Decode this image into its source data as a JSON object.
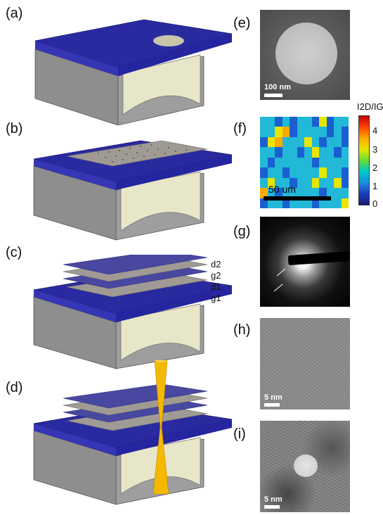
{
  "panels": {
    "a": {
      "label": "(a)"
    },
    "b": {
      "label": "(b)"
    },
    "c": {
      "label": "(c)",
      "layers": [
        "d2",
        "g2",
        "d1",
        "g1"
      ]
    },
    "d": {
      "label": "(d)"
    },
    "e": {
      "label": "(e)",
      "scale": "100 nm"
    },
    "f": {
      "label": "(f)",
      "scale": "50 um",
      "colorbar_title": "I2D/IG",
      "colorbar_ticks": [
        "4",
        "3",
        "2",
        "1",
        "0"
      ]
    },
    "g": {
      "label": "(g)"
    },
    "h": {
      "label": "(h)",
      "scale": "5 nm"
    },
    "i": {
      "label": "(i)",
      "scale": "5 nm"
    }
  },
  "colors": {
    "substrate_top": "#2a2aa0",
    "substrate_side": "#8e8e8e",
    "cavity": "#e8e6c8",
    "membrane": "#9a9490",
    "dielectric": "#4848a0",
    "laser": "#f5b800"
  },
  "heatmap": [
    [
      2,
      2,
      1,
      2,
      1,
      2,
      2,
      1,
      3,
      1,
      2,
      2
    ],
    [
      2,
      2,
      3,
      4,
      1,
      2,
      2,
      2,
      2,
      1,
      2,
      1
    ],
    [
      1,
      3,
      4,
      2,
      2,
      2,
      3,
      2,
      1,
      2,
      2,
      1
    ],
    [
      2,
      2,
      1,
      2,
      2,
      1,
      2,
      3,
      2,
      2,
      1,
      2
    ],
    [
      2,
      1,
      2,
      2,
      2,
      2,
      2,
      1,
      2,
      2,
      2,
      2
    ],
    [
      1,
      2,
      2,
      1,
      2,
      2,
      2,
      2,
      3,
      2,
      2,
      1
    ],
    [
      2,
      3,
      2,
      2,
      1,
      2,
      2,
      3,
      2,
      2,
      3,
      1
    ],
    [
      4,
      2,
      1,
      2,
      2,
      2,
      2,
      2,
      1,
      2,
      2,
      2
    ],
    [
      1,
      2,
      2,
      1,
      2,
      2,
      2,
      1,
      2,
      2,
      2,
      3
    ]
  ]
}
